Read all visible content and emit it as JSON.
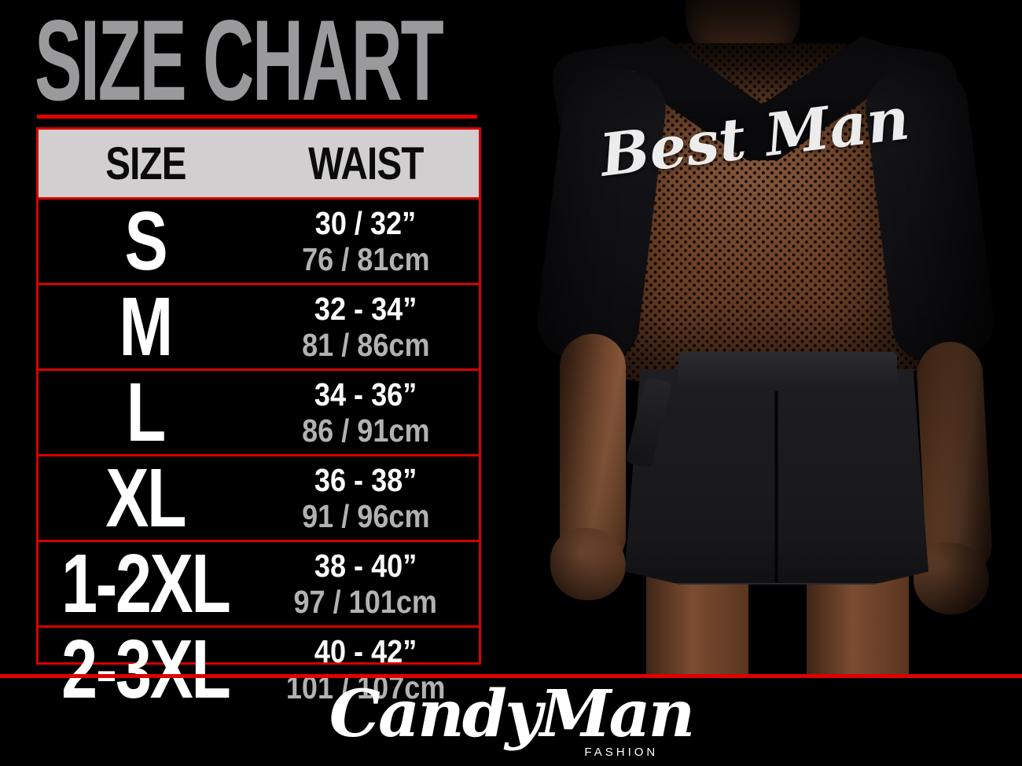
{
  "page": {
    "title": "SIZE CHART"
  },
  "table": {
    "headers": {
      "size": "SIZE",
      "waist": "WAIST"
    },
    "rows": [
      {
        "size": "S",
        "waist_in": "30 / 32”",
        "waist_cm": "76 / 81cm"
      },
      {
        "size": "M",
        "waist_in": "32 - 34”",
        "waist_cm": "81 / 86cm"
      },
      {
        "size": "L",
        "waist_in": "34 - 36”",
        "waist_cm": "86 / 91cm"
      },
      {
        "size": "XL",
        "waist_in": "36 - 38”",
        "waist_cm": "91 / 96cm"
      },
      {
        "size": "1-2XL",
        "waist_in": "38 - 40”",
        "waist_cm": "97 / 101cm"
      },
      {
        "size": "2-3XL",
        "waist_in": "40 - 42”",
        "waist_cm": "101 / 107cm"
      }
    ]
  },
  "photo": {
    "garment_text": "Best Man"
  },
  "footer": {
    "brand": "CandyMan",
    "brand_sub": "FASHION"
  },
  "colors": {
    "background": "#000000",
    "accent_red": "#e00000",
    "title_gray": "#9a999b",
    "header_bg": "#d2cfd0",
    "size_text": "#ffffff",
    "cm_text": "#b3b1b2",
    "mesh_brown": "#6d4127"
  },
  "chart_data": {
    "type": "table",
    "title": "SIZE CHART",
    "columns": [
      "SIZE",
      "WAIST"
    ],
    "rows": [
      [
        "S",
        "30 / 32”",
        "76 / 81cm"
      ],
      [
        "M",
        "32 - 34”",
        "81 / 86cm"
      ],
      [
        "L",
        "34 - 36”",
        "86 / 91cm"
      ],
      [
        "XL",
        "36 - 38”",
        "91 / 96cm"
      ],
      [
        "1-2XL",
        "38 - 40”",
        "97 / 101cm"
      ],
      [
        "2-3XL",
        "40 - 42”",
        "101 / 107cm"
      ]
    ]
  }
}
